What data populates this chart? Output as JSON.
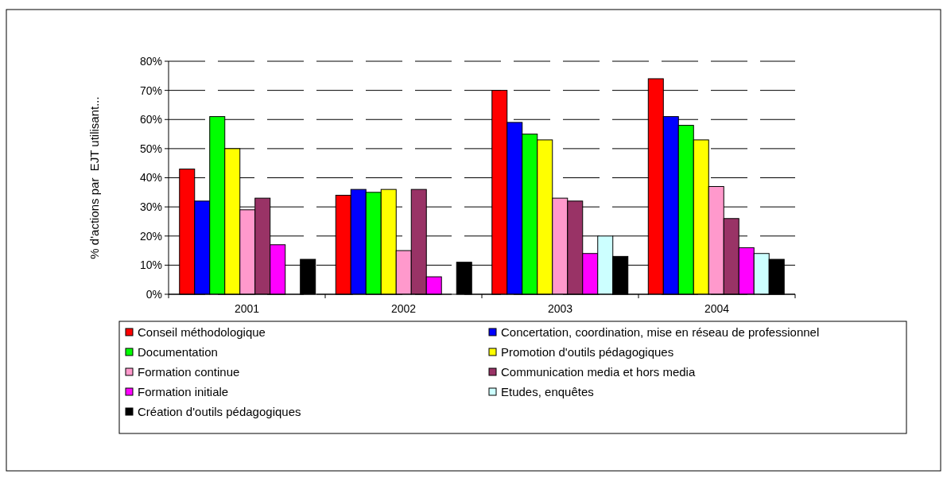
{
  "chart_data": {
    "type": "bar",
    "ylabel": "% d'actions par  EJT utilisant...",
    "categories": [
      "2001",
      "2002",
      "2003",
      "2004"
    ],
    "series": [
      {
        "name": "Conseil méthodologique",
        "color": "#ff0000",
        "values": [
          43,
          34,
          70,
          74
        ]
      },
      {
        "name": "Concertation, coordination, mise en réseau de professionnel",
        "color": "#0000ff",
        "values": [
          32,
          36,
          59,
          61
        ]
      },
      {
        "name": "Documentation",
        "color": "#00ff00",
        "values": [
          61,
          35,
          55,
          58
        ]
      },
      {
        "name": "Promotion d'outils pédagogiques",
        "color": "#ffff00",
        "values": [
          50,
          36,
          53,
          53
        ]
      },
      {
        "name": "Formation continue",
        "color": "#ff99cc",
        "values": [
          29,
          15,
          33,
          37
        ]
      },
      {
        "name": "Communication media et hors media",
        "color": "#993366",
        "values": [
          33,
          36,
          32,
          26
        ]
      },
      {
        "name": "Formation initiale",
        "color": "#ff00ff",
        "values": [
          17,
          6,
          14,
          16
        ]
      },
      {
        "name": "Etudes, enquêtes",
        "color": "#ccffff",
        "values": [
          null,
          null,
          20,
          14
        ]
      },
      {
        "name": "Création d'outils pédagogiques",
        "color": "#000000",
        "values": [
          12,
          11,
          13,
          12
        ]
      }
    ],
    "ylim": [
      0,
      80
    ],
    "yticks": [
      {
        "value": 0,
        "label": "0%"
      },
      {
        "value": 10,
        "label": "10%"
      },
      {
        "value": 20,
        "label": "20%"
      },
      {
        "value": 30,
        "label": "30%"
      },
      {
        "value": 40,
        "label": "40%"
      },
      {
        "value": 50,
        "label": "50%"
      },
      {
        "value": 60,
        "label": "60%"
      },
      {
        "value": 70,
        "label": "70%"
      },
      {
        "value": 80,
        "label": "80%"
      }
    ],
    "grid": "y",
    "line_style": "dashed",
    "legend": "bottom"
  }
}
